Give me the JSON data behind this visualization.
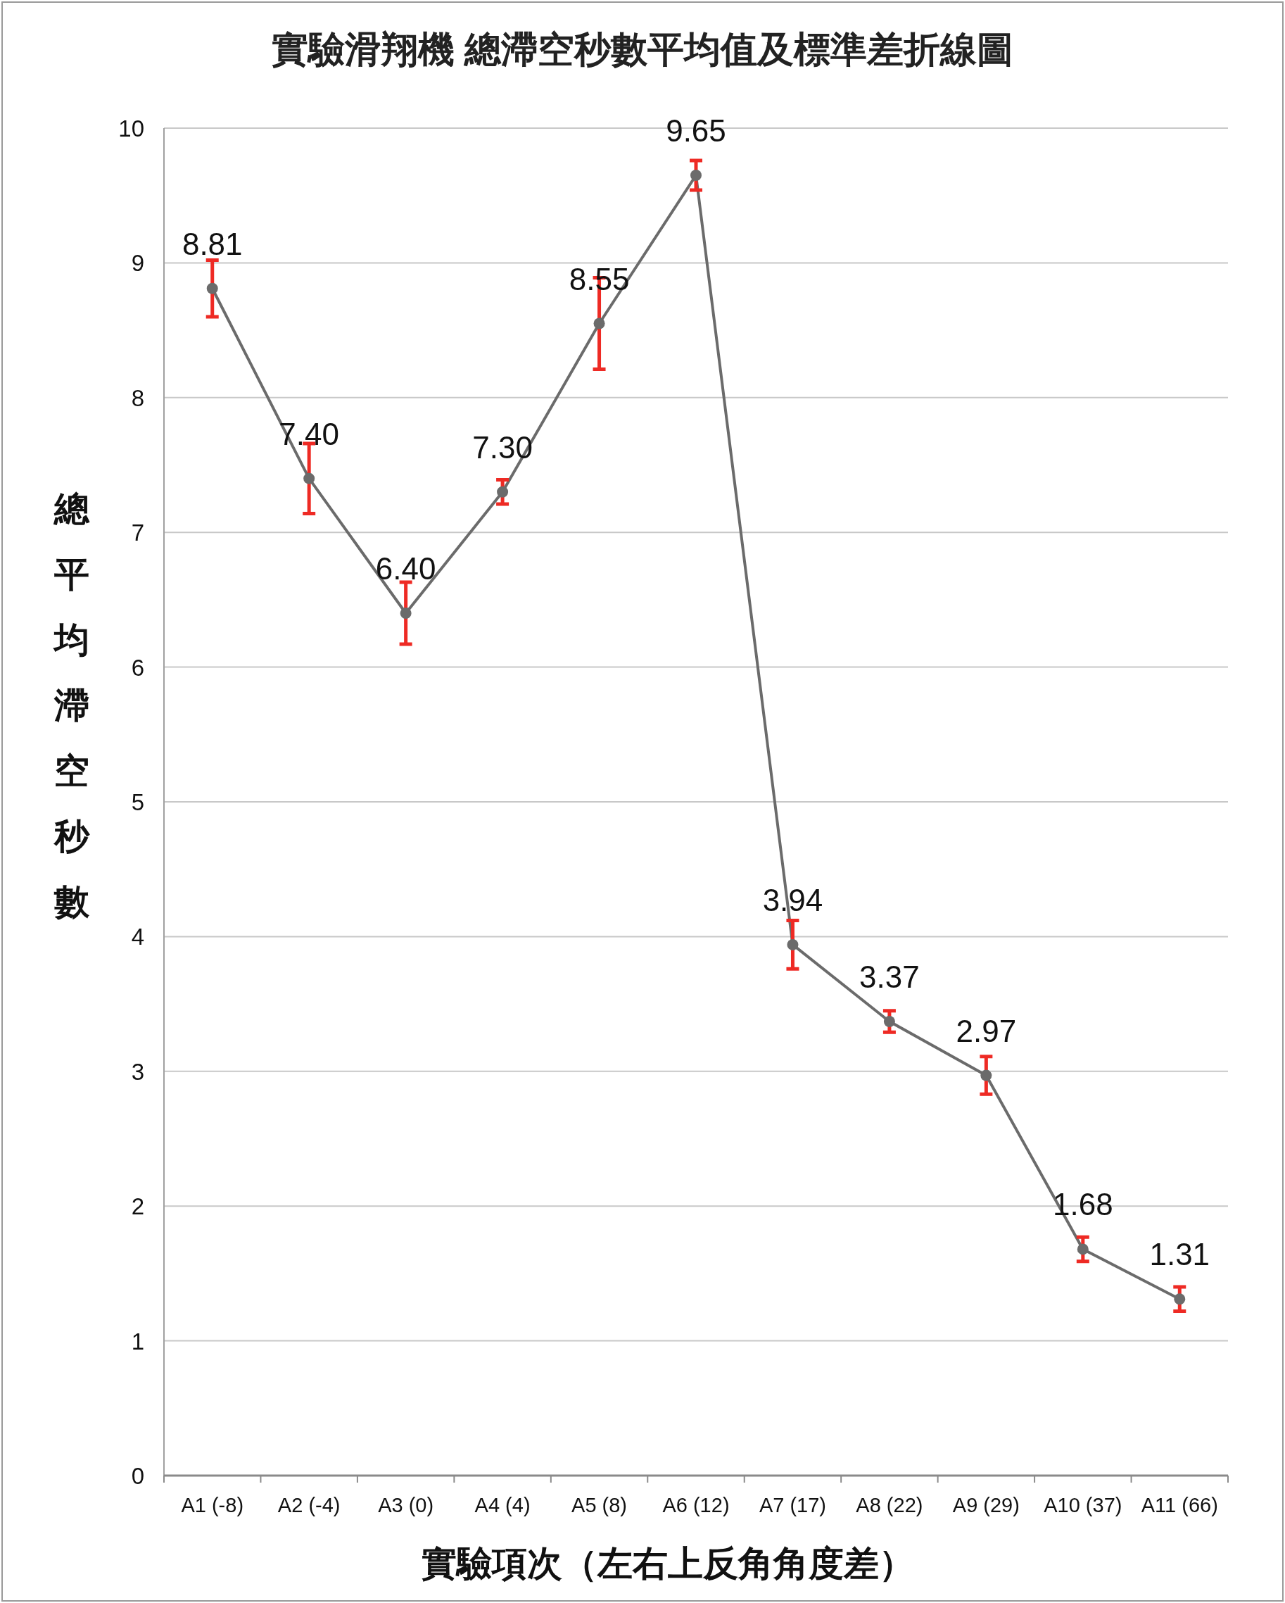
{
  "chart_data": {
    "type": "line",
    "title": "實驗滑翔機 總滯空秒數平均值及標準差折線圖",
    "xlabel": "實驗項次（左右上反角角度差）",
    "ylabel": "總平均滯空秒數",
    "categories": [
      "A1 (-8)",
      "A2 (-4)",
      "A3 (0)",
      "A4 (4)",
      "A5 (8)",
      "A6 (12)",
      "A7 (17)",
      "A8 (22)",
      "A9 (29)",
      "A10 (37)",
      "A11 (66)"
    ],
    "series": [
      {
        "color": "#6b6b6b",
        "values": [
          8.81,
          7.4,
          6.4,
          7.3,
          8.55,
          9.65,
          3.94,
          3.37,
          2.97,
          1.68,
          1.31
        ],
        "errors": [
          0.21,
          0.26,
          0.23,
          0.09,
          0.34,
          0.11,
          0.18,
          0.08,
          0.14,
          0.09,
          0.09
        ],
        "value_labels": [
          "8.81",
          "7.40",
          "6.40",
          "7.30",
          "8.55",
          "9.65",
          "3.94",
          "3.37",
          "2.97",
          "1.68",
          "1.31"
        ]
      }
    ],
    "ylim": [
      0,
      10
    ],
    "yticks": [
      0,
      1,
      2,
      3,
      4,
      5,
      6,
      7,
      8,
      9,
      10
    ],
    "grid": "y",
    "marker": "circle",
    "line_style": "solid"
  }
}
